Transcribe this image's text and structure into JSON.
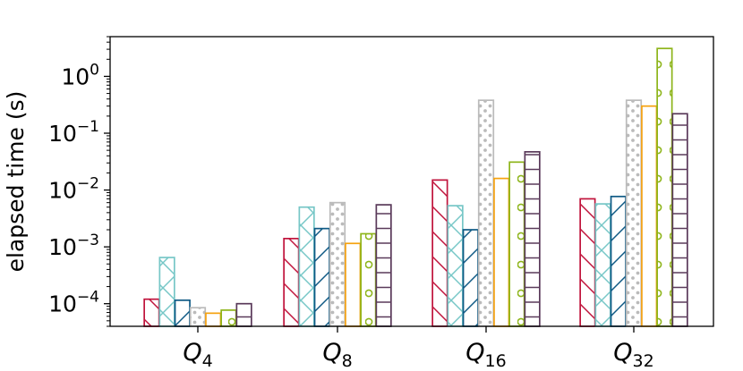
{
  "chart_data": {
    "type": "bar",
    "ylabel": "elapsed time (s)",
    "yscale": "log",
    "ylim": [
      4e-05,
      5
    ],
    "yticks": [
      {
        "value": 0.0001,
        "base": "10",
        "exp": "−4"
      },
      {
        "value": 0.001,
        "base": "10",
        "exp": "−3"
      },
      {
        "value": 0.01,
        "base": "10",
        "exp": "−2"
      },
      {
        "value": 0.1,
        "base": "10",
        "exp": "−1"
      },
      {
        "value": 1,
        "base": "10",
        "exp": "0"
      }
    ],
    "categories": [
      {
        "main": "Q",
        "sub": "4"
      },
      {
        "main": "Q",
        "sub": "8"
      },
      {
        "main": "Q",
        "sub": "16"
      },
      {
        "main": "Q",
        "sub": "32"
      }
    ],
    "series": [
      {
        "color": "#c0143c",
        "hatch": "backslash",
        "values": [
          0.00012,
          0.0014,
          0.015,
          0.007
        ]
      },
      {
        "color": "#77c7c7",
        "hatch": "cross",
        "values": [
          0.00065,
          0.005,
          0.0053,
          0.0057
        ]
      },
      {
        "color": "#0f5a85",
        "hatch": "slash",
        "values": [
          0.000115,
          0.0021,
          0.002,
          0.0077
        ]
      },
      {
        "color": "#bbbbbb",
        "hatch": "dots",
        "values": [
          8.5e-05,
          0.006,
          0.38,
          0.38
        ]
      },
      {
        "color": "#f5a20f",
        "hatch": "none",
        "values": [
          6.8e-05,
          0.00115,
          0.016,
          0.3
        ]
      },
      {
        "color": "#8eb51b",
        "hatch": "circles",
        "values": [
          7.7e-05,
          0.0017,
          0.031,
          3.1
        ]
      },
      {
        "color": "#5a3a5a",
        "hatch": "horizontal",
        "values": [
          0.0001,
          0.0055,
          0.047,
          0.22
        ]
      }
    ],
    "grid": false,
    "legend": "none"
  }
}
